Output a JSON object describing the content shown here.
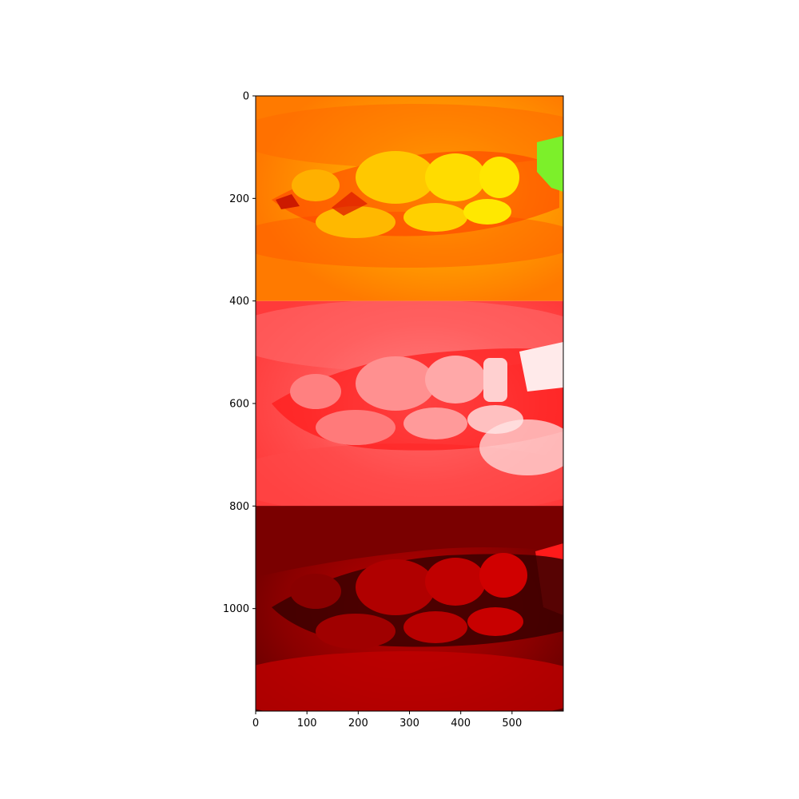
{
  "figure": {
    "x_axis": {
      "ticks": [
        0,
        100,
        200,
        300,
        400,
        500
      ],
      "range": [
        0,
        600
      ]
    },
    "y_axis": {
      "ticks": [
        0,
        200,
        400,
        600,
        800,
        1000
      ],
      "range": [
        0,
        1200
      ],
      "inverted": true
    }
  },
  "image": {
    "description_kind": "photo of mouth with teeth, three vertically stacked color-channel renderings",
    "panels": [
      {
        "name": "top",
        "rows": [
          0,
          400
        ],
        "palette": "orange-yellow",
        "colors": {
          "base": "#ff8a00",
          "light": "#ffd400",
          "dark": "#ff3a00",
          "accent": "#7cf02a"
        }
      },
      {
        "name": "middle",
        "rows": [
          400,
          800
        ],
        "palette": "red-white",
        "colors": {
          "base": "#ff5050",
          "light": "#ffe0e0",
          "dark": "#ff0000"
        }
      },
      {
        "name": "bottom",
        "rows": [
          800,
          1200
        ],
        "palette": "dark-red",
        "colors": {
          "base": "#a00000",
          "light": "#e00000",
          "dark": "#3a0000"
        }
      }
    ]
  }
}
